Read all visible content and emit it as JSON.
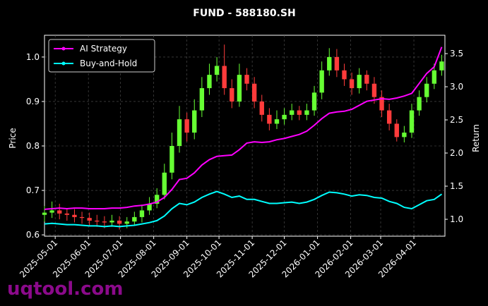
{
  "chart_data": {
    "type": "candlestick",
    "title": "FUND - 588180.SH",
    "ylabel": "Price",
    "y2label": "Return",
    "watermark": "uqtool.com",
    "legend": "upper left",
    "grid": true,
    "up_color": "#66ff33",
    "down_color": "#ff3b3b",
    "x": [
      "2025-04-21",
      "2025-04-28",
      "2025-05-05",
      "2025-05-12",
      "2025-05-19",
      "2025-05-26",
      "2025-06-02",
      "2025-06-09",
      "2025-06-16",
      "2025-06-23",
      "2025-06-30",
      "2025-07-07",
      "2025-07-14",
      "2025-07-21",
      "2025-07-28",
      "2025-08-04",
      "2025-08-11",
      "2025-08-18",
      "2025-08-25",
      "2025-09-01",
      "2025-09-08",
      "2025-09-15",
      "2025-09-22",
      "2025-09-29",
      "2025-10-06",
      "2025-10-13",
      "2025-10-20",
      "2025-10-27",
      "2025-11-03",
      "2025-11-10",
      "2025-11-17",
      "2025-11-24",
      "2025-12-01",
      "2025-12-08",
      "2025-12-15",
      "2025-12-22",
      "2025-12-29",
      "2026-01-05",
      "2026-01-12",
      "2026-01-19",
      "2026-01-26",
      "2026-02-02",
      "2026-02-09",
      "2026-02-16",
      "2026-02-23",
      "2026-03-02",
      "2026-03-09",
      "2026-03-16",
      "2026-03-23",
      "2026-03-30",
      "2026-04-06",
      "2026-04-13",
      "2026-04-20",
      "2026-04-27"
    ],
    "open": [
      0.645,
      0.65,
      0.655,
      0.648,
      0.645,
      0.64,
      0.638,
      0.632,
      0.63,
      0.628,
      0.632,
      0.625,
      0.63,
      0.64,
      0.655,
      0.67,
      0.69,
      0.74,
      0.8,
      0.86,
      0.83,
      0.88,
      0.93,
      0.96,
      0.98,
      0.93,
      0.9,
      0.96,
      0.94,
      0.9,
      0.87,
      0.85,
      0.86,
      0.87,
      0.88,
      0.87,
      0.88,
      0.92,
      0.97,
      1.0,
      0.97,
      0.95,
      0.93,
      0.96,
      0.94,
      0.91,
      0.88,
      0.85,
      0.82,
      0.83,
      0.88,
      0.91,
      0.94,
      0.97
    ],
    "high": [
      0.665,
      0.675,
      0.67,
      0.66,
      0.658,
      0.652,
      0.65,
      0.645,
      0.642,
      0.645,
      0.642,
      0.64,
      0.652,
      0.668,
      0.685,
      0.705,
      0.76,
      0.83,
      0.89,
      0.875,
      0.905,
      0.955,
      0.985,
      1.0,
      1.028,
      0.95,
      0.985,
      0.975,
      0.955,
      0.915,
      0.885,
      0.88,
      0.885,
      0.895,
      0.89,
      0.895,
      0.935,
      0.99,
      1.02,
      1.018,
      0.985,
      0.965,
      0.975,
      0.97,
      0.955,
      0.925,
      0.895,
      0.86,
      0.845,
      0.895,
      0.925,
      0.955,
      0.985,
      1.005
    ],
    "low": [
      0.63,
      0.638,
      0.635,
      0.632,
      0.628,
      0.625,
      0.62,
      0.618,
      0.615,
      0.618,
      0.612,
      0.615,
      0.62,
      0.628,
      0.645,
      0.66,
      0.68,
      0.725,
      0.785,
      0.81,
      0.815,
      0.865,
      0.915,
      0.945,
      0.915,
      0.885,
      0.888,
      0.925,
      0.885,
      0.855,
      0.835,
      0.838,
      0.848,
      0.858,
      0.858,
      0.858,
      0.868,
      0.905,
      0.958,
      0.955,
      0.935,
      0.915,
      0.918,
      0.925,
      0.895,
      0.865,
      0.835,
      0.81,
      0.808,
      0.818,
      0.868,
      0.898,
      0.928,
      0.958
    ],
    "close": [
      0.65,
      0.655,
      0.648,
      0.645,
      0.64,
      0.638,
      0.632,
      0.63,
      0.628,
      0.632,
      0.625,
      0.63,
      0.64,
      0.655,
      0.67,
      0.69,
      0.74,
      0.8,
      0.86,
      0.83,
      0.88,
      0.93,
      0.96,
      0.98,
      0.93,
      0.9,
      0.96,
      0.94,
      0.9,
      0.87,
      0.85,
      0.86,
      0.87,
      0.88,
      0.87,
      0.88,
      0.92,
      0.97,
      1.0,
      0.97,
      0.95,
      0.93,
      0.96,
      0.94,
      0.91,
      0.88,
      0.85,
      0.82,
      0.83,
      0.88,
      0.91,
      0.94,
      0.97,
      0.99
    ],
    "series": [
      {
        "name": "AI Strategy",
        "color": "#ff00ff",
        "axis": "y2",
        "values": [
          1.15,
          1.16,
          1.17,
          1.16,
          1.17,
          1.17,
          1.16,
          1.16,
          1.16,
          1.17,
          1.17,
          1.18,
          1.2,
          1.21,
          1.23,
          1.26,
          1.33,
          1.45,
          1.6,
          1.62,
          1.7,
          1.82,
          1.9,
          1.95,
          1.96,
          1.97,
          2.05,
          2.15,
          2.17,
          2.16,
          2.17,
          2.2,
          2.22,
          2.25,
          2.28,
          2.33,
          2.42,
          2.52,
          2.6,
          2.62,
          2.63,
          2.66,
          2.72,
          2.78,
          2.8,
          2.82,
          2.81,
          2.83,
          2.86,
          2.9,
          3.05,
          3.2,
          3.3,
          3.6
        ]
      },
      {
        "name": "Buy-and-Hold",
        "color": "#00ffff",
        "axis": "y2",
        "values": [
          0.93,
          0.94,
          0.93,
          0.92,
          0.92,
          0.91,
          0.9,
          0.9,
          0.89,
          0.9,
          0.89,
          0.9,
          0.91,
          0.93,
          0.95,
          0.98,
          1.05,
          1.16,
          1.24,
          1.22,
          1.26,
          1.33,
          1.38,
          1.42,
          1.38,
          1.33,
          1.35,
          1.3,
          1.3,
          1.27,
          1.24,
          1.24,
          1.25,
          1.26,
          1.24,
          1.26,
          1.3,
          1.36,
          1.41,
          1.4,
          1.38,
          1.35,
          1.37,
          1.36,
          1.33,
          1.32,
          1.27,
          1.24,
          1.18,
          1.16,
          1.22,
          1.28,
          1.3,
          1.38
        ]
      }
    ],
    "xlim": [
      "2025-04-21",
      "2026-04-30"
    ],
    "xticks": [
      "2025-05-01",
      "2025-06-01",
      "2025-07-01",
      "2025-08-01",
      "2025-09-01",
      "2025-10-01",
      "2025-11-01",
      "2025-12-01",
      "2026-01-01",
      "2026-02-01",
      "2026-03-01",
      "2026-04-01"
    ],
    "ylim": [
      0.597,
      1.049
    ],
    "yticks": [
      0.6,
      0.7,
      0.8,
      0.9,
      {
        "value": 1,
        "label": "1.0"
      }
    ],
    "y2lim": [
      0.745,
      3.777
    ],
    "y2ticks": [
      {
        "value": 1,
        "label": "1.0"
      },
      1.5,
      {
        "value": 2,
        "label": "2.0"
      },
      2.5,
      {
        "value": 3,
        "label": "3.0"
      },
      3.5
    ]
  }
}
